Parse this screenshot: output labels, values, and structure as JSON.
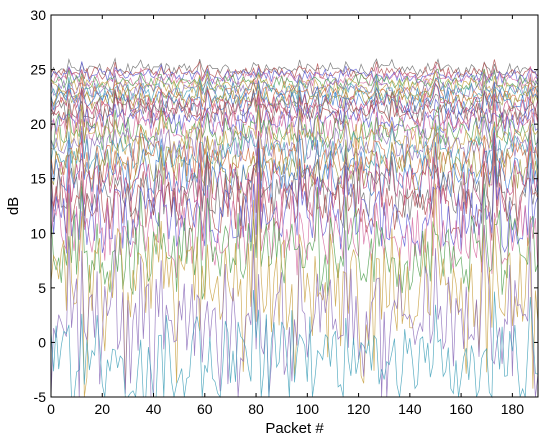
{
  "chart_data": {
    "type": "line",
    "title": "",
    "xlabel": "Packet #",
    "ylabel": "dB",
    "xlim": [
      0,
      190
    ],
    "ylim": [
      -5,
      30
    ],
    "xticks": [
      0,
      20,
      40,
      60,
      80,
      100,
      120,
      140,
      160,
      180
    ],
    "yticks": [
      -5,
      0,
      5,
      10,
      15,
      20,
      25,
      30
    ],
    "grid": false,
    "legend": "none",
    "num_packets": 190,
    "series_colors": [
      "#6b6b6b",
      "#b04a4a",
      "#5a5ad6",
      "#d66aa0",
      "#4fa04f",
      "#c8a040",
      "#8a6ab8",
      "#40a0b8",
      "#d06a3a",
      "#9a9a3a",
      "#3a7ad6",
      "#c0407a"
    ],
    "series_profiles": [
      {
        "mean": 25.0,
        "amp": 0.7
      },
      {
        "mean": 24.7,
        "amp": 0.7
      },
      {
        "mean": 24.4,
        "amp": 0.8
      },
      {
        "mean": 24.1,
        "amp": 0.8
      },
      {
        "mean": 23.8,
        "amp": 0.9
      },
      {
        "mean": 23.5,
        "amp": 0.9
      },
      {
        "mean": 23.2,
        "amp": 1.0
      },
      {
        "mean": 22.9,
        "amp": 1.0
      },
      {
        "mean": 22.6,
        "amp": 1.1
      },
      {
        "mean": 22.3,
        "amp": 1.1
      },
      {
        "mean": 22.0,
        "amp": 1.2
      },
      {
        "mean": 21.6,
        "amp": 1.3
      },
      {
        "mean": 21.2,
        "amp": 1.4
      },
      {
        "mean": 20.8,
        "amp": 1.5
      },
      {
        "mean": 20.3,
        "amp": 1.6
      },
      {
        "mean": 19.8,
        "amp": 1.7
      },
      {
        "mean": 19.2,
        "amp": 1.8
      },
      {
        "mean": 18.6,
        "amp": 1.9
      },
      {
        "mean": 18.0,
        "amp": 2.0
      },
      {
        "mean": 17.4,
        "amp": 2.1
      },
      {
        "mean": 16.7,
        "amp": 2.3
      },
      {
        "mean": 16.0,
        "amp": 2.5
      },
      {
        "mean": 15.2,
        "amp": 2.7
      },
      {
        "mean": 14.4,
        "amp": 3.0
      },
      {
        "mean": 13.5,
        "amp": 3.2
      },
      {
        "mean": 12.5,
        "amp": 3.5
      },
      {
        "mean": 11.3,
        "amp": 3.8
      },
      {
        "mean": 9.8,
        "amp": 4.2
      },
      {
        "mean": 8.0,
        "amp": 4.8
      },
      {
        "mean": 5.5,
        "amp": 5.5
      },
      {
        "mean": 2.5,
        "amp": 5.5
      },
      {
        "mean": -1.0,
        "amp": 4.5
      }
    ]
  }
}
